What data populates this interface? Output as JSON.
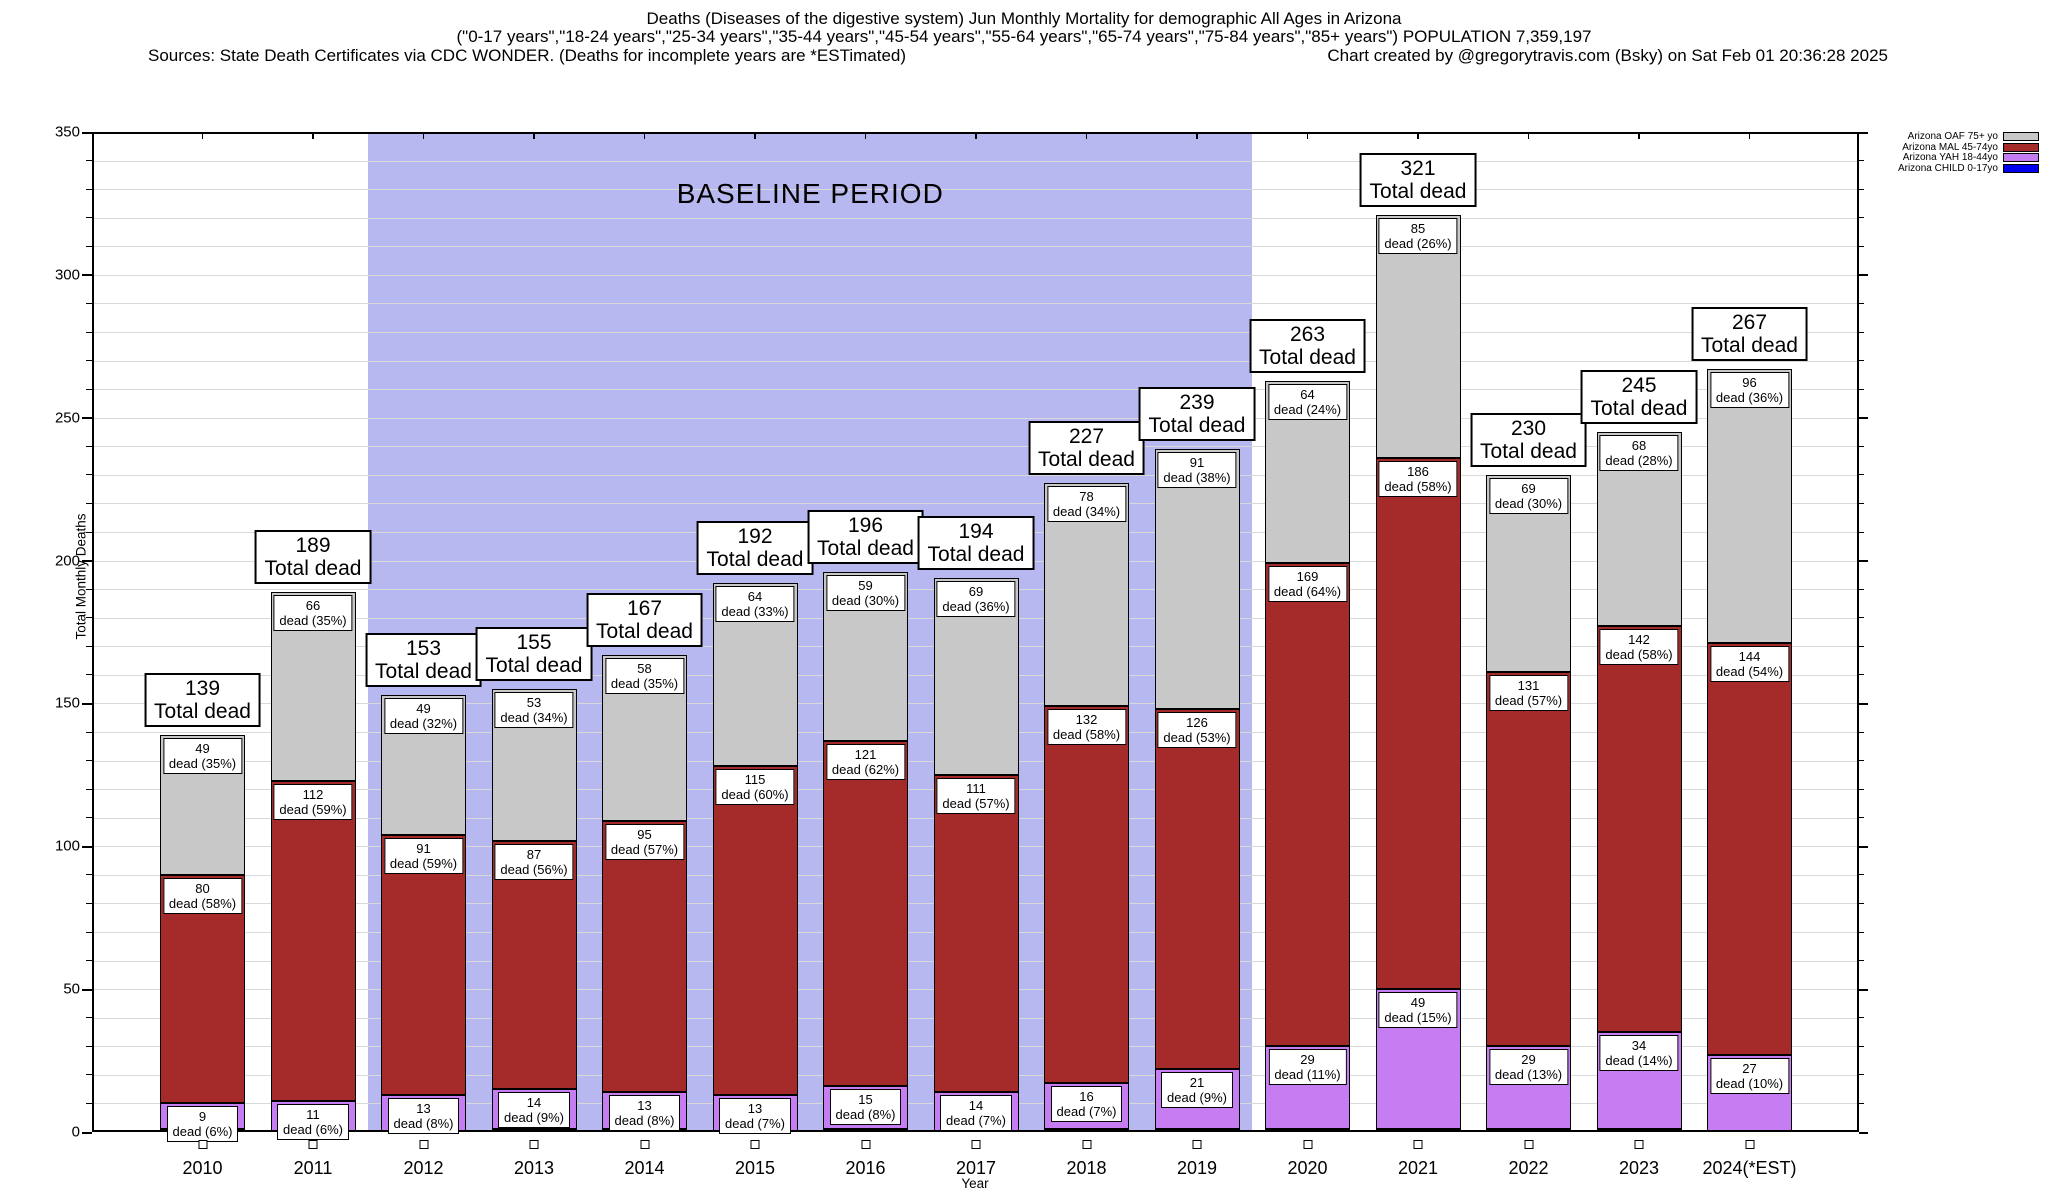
{
  "title": {
    "line1": "Deaths (Diseases of the digestive system) Jun Monthly Mortality for demographic All Ages in Arizona",
    "line2": "(\"0-17 years\",\"18-24 years\",\"25-34 years\",\"35-44 years\",\"45-54 years\",\"55-64 years\",\"65-74 years\",\"75-84 years\",\"85+ years\") POPULATION 7,359,197",
    "source_note": "Sources: State Death Certificates via CDC WONDER. (Deaths for incomplete years are *ESTimated)",
    "credit": "Chart created by @gregorytravis.com (Bsky) on Sat Feb 01 20:36:28 2025"
  },
  "chart_data": {
    "type": "bar",
    "stacked": true,
    "xlabel": "Year",
    "ylabel": "Total Monthly Deaths",
    "ylim": [
      0,
      350
    ],
    "ytick_major": 50,
    "ytick_minor": 10,
    "grid": true,
    "legend_position": "top-right",
    "baseline_band": {
      "label": "BASELINE PERIOD",
      "from_category": "2012",
      "to_category": "2019",
      "color": "#b8b8f0"
    },
    "categories": [
      "2010",
      "2011",
      "2012",
      "2013",
      "2014",
      "2015",
      "2016",
      "2017",
      "2018",
      "2019",
      "2020",
      "2021",
      "2022",
      "2023",
      "2024(*EST)"
    ],
    "totals": [
      139,
      189,
      153,
      155,
      167,
      192,
      196,
      194,
      227,
      239,
      263,
      321,
      230,
      245,
      267
    ],
    "total_label_suffix": "Total dead",
    "segment_label_word": "dead",
    "series": [
      {
        "name": "Arizona CHILD 0-17yo",
        "color": "#0000ee",
        "values": [
          1,
          0,
          0,
          1,
          1,
          0,
          1,
          0,
          1,
          1,
          1,
          1,
          1,
          1,
          0
        ],
        "percents": null
      },
      {
        "name": "Arizona YAH 18-44yo",
        "color": "#c77df2",
        "values": [
          9,
          11,
          13,
          14,
          13,
          13,
          15,
          14,
          16,
          21,
          29,
          49,
          29,
          34,
          27
        ],
        "percents": [
          6,
          6,
          8,
          9,
          8,
          7,
          8,
          7,
          7,
          9,
          11,
          15,
          13,
          14,
          10
        ]
      },
      {
        "name": "Arizona MAL 45-74yo",
        "color": "#a52a2a",
        "values": [
          80,
          112,
          91,
          87,
          95,
          115,
          121,
          111,
          132,
          126,
          169,
          186,
          131,
          142,
          144
        ],
        "percents": [
          58,
          59,
          59,
          56,
          57,
          60,
          62,
          57,
          58,
          53,
          64,
          58,
          57,
          58,
          54
        ]
      },
      {
        "name": "Arizona OAF 75+ yo",
        "color": "#c8c8c8",
        "values": [
          49,
          66,
          49,
          53,
          58,
          64,
          59,
          69,
          78,
          91,
          64,
          85,
          69,
          68,
          96
        ],
        "percents": [
          35,
          35,
          32,
          34,
          35,
          33,
          30,
          36,
          34,
          38,
          24,
          26,
          30,
          28,
          36
        ]
      }
    ],
    "legend": [
      "Arizona OAF 75+ yo",
      "Arizona MAL 45-74yo",
      "Arizona YAH 18-44yo",
      "Arizona CHILD 0-17yo"
    ]
  }
}
